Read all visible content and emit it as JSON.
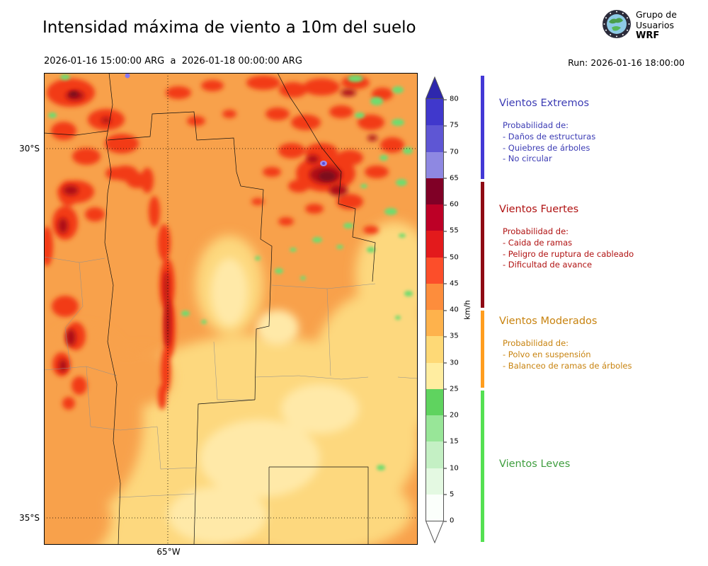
{
  "header": {
    "title": "Intensidad máxima de viento a 10m del suelo",
    "period": "2026-01-16 15:00:00 ARG  a  2026-01-18 00:00:00 ARG",
    "run": "Run: 2026-01-16 18:00:00",
    "logo": {
      "line1": "Grupo de",
      "line2": "Usuarios",
      "line3": "WRF"
    }
  },
  "map": {
    "lat_top_label": "30°S",
    "lat_bottom_label": "35°S",
    "lon_label": "65°W"
  },
  "colorbar": {
    "unit": "km/h",
    "ticks": [
      "80",
      "75",
      "70",
      "65",
      "60",
      "55",
      "50",
      "45",
      "40",
      "35",
      "30",
      "25",
      "20",
      "15",
      "10",
      "5",
      "0"
    ],
    "segments_top_to_bottom": [
      "#4038cc",
      "#5e56d4",
      "#8e88e2",
      "#800026",
      "#bd0026",
      "#e31a1c",
      "#fc4e2a",
      "#fd8d3c",
      "#feb24c",
      "#fed976",
      "#ffeda0",
      "#5fd35f",
      "#98e698",
      "#c4f0c4",
      "#e4f9e2",
      "#fbfffb"
    ],
    "over_color": "#2e27ad",
    "under_color": "#ffffff"
  },
  "legend": {
    "sections": [
      {
        "title": "Vientos Extremos",
        "text_color": "#3b3bb4",
        "bar_color": "#4338d6",
        "intro": "Probabilidad de:",
        "items": [
          "- Daños de estructuras",
          "- Quiebres de árboles",
          "- No circular"
        ]
      },
      {
        "title": "Vientos Fuertes",
        "text_color": "#b01111",
        "bar_color": "#8f0a14",
        "intro": "Probabilidad de:",
        "items": [
          "- Caida de ramas",
          "- Peligro de ruptura de cableado",
          "- Dificultad de avance"
        ]
      },
      {
        "title": "Vientos Moderados",
        "text_color": "#c8830f",
        "bar_color": "#ff9d1e",
        "intro": "Probabilidad de:",
        "items": [
          "- Polvo en suspensión",
          "- Balanceo de ramas de árboles"
        ]
      },
      {
        "title": "Vientos Leves",
        "text_color": "#3f9e3f",
        "bar_color": "#54e052",
        "intro": "",
        "items": []
      }
    ]
  }
}
